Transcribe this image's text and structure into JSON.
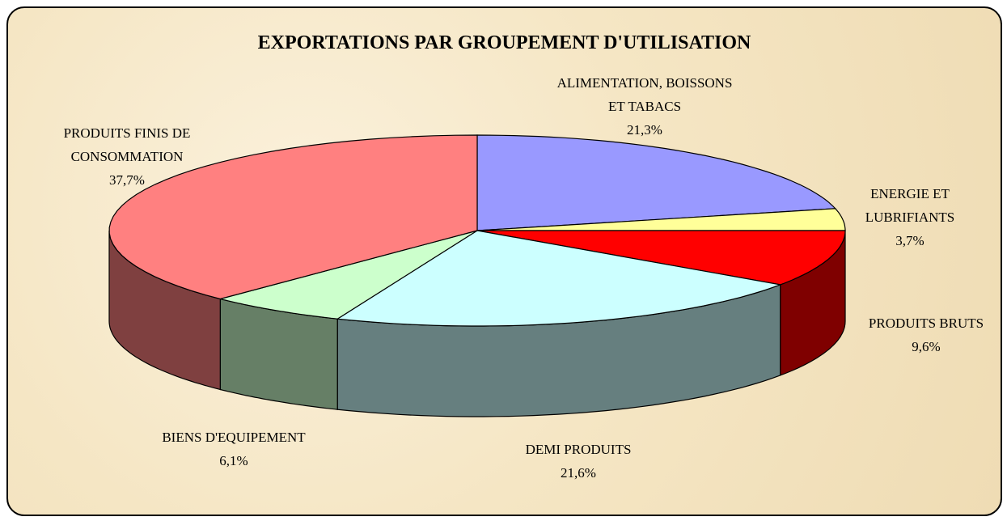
{
  "chart_data": {
    "type": "pie3d",
    "title": "EXPORTATIONS PAR GROUPEMENT D'UTILISATION",
    "categories": [
      "ALIMENTATION, BOISSONS ET TABACS",
      "ENERGIE ET LUBRIFIANTS",
      "PRODUITS BRUTS",
      "DEMI PRODUITS",
      "BIENS D'EQUIPEMENT",
      "PRODUITS FINIS DE CONSOMMATION"
    ],
    "values": [
      21.3,
      3.7,
      9.6,
      21.6,
      6.1,
      37.7
    ],
    "value_labels": [
      "21,3%",
      "3,7%",
      "9,6%",
      "21,6%",
      "6,1%",
      "37,7%"
    ],
    "colors": [
      "#9999ff",
      "#ffff99",
      "#ff0000",
      "#ccffff",
      "#ccffcc",
      "#ff8080"
    ]
  }
}
